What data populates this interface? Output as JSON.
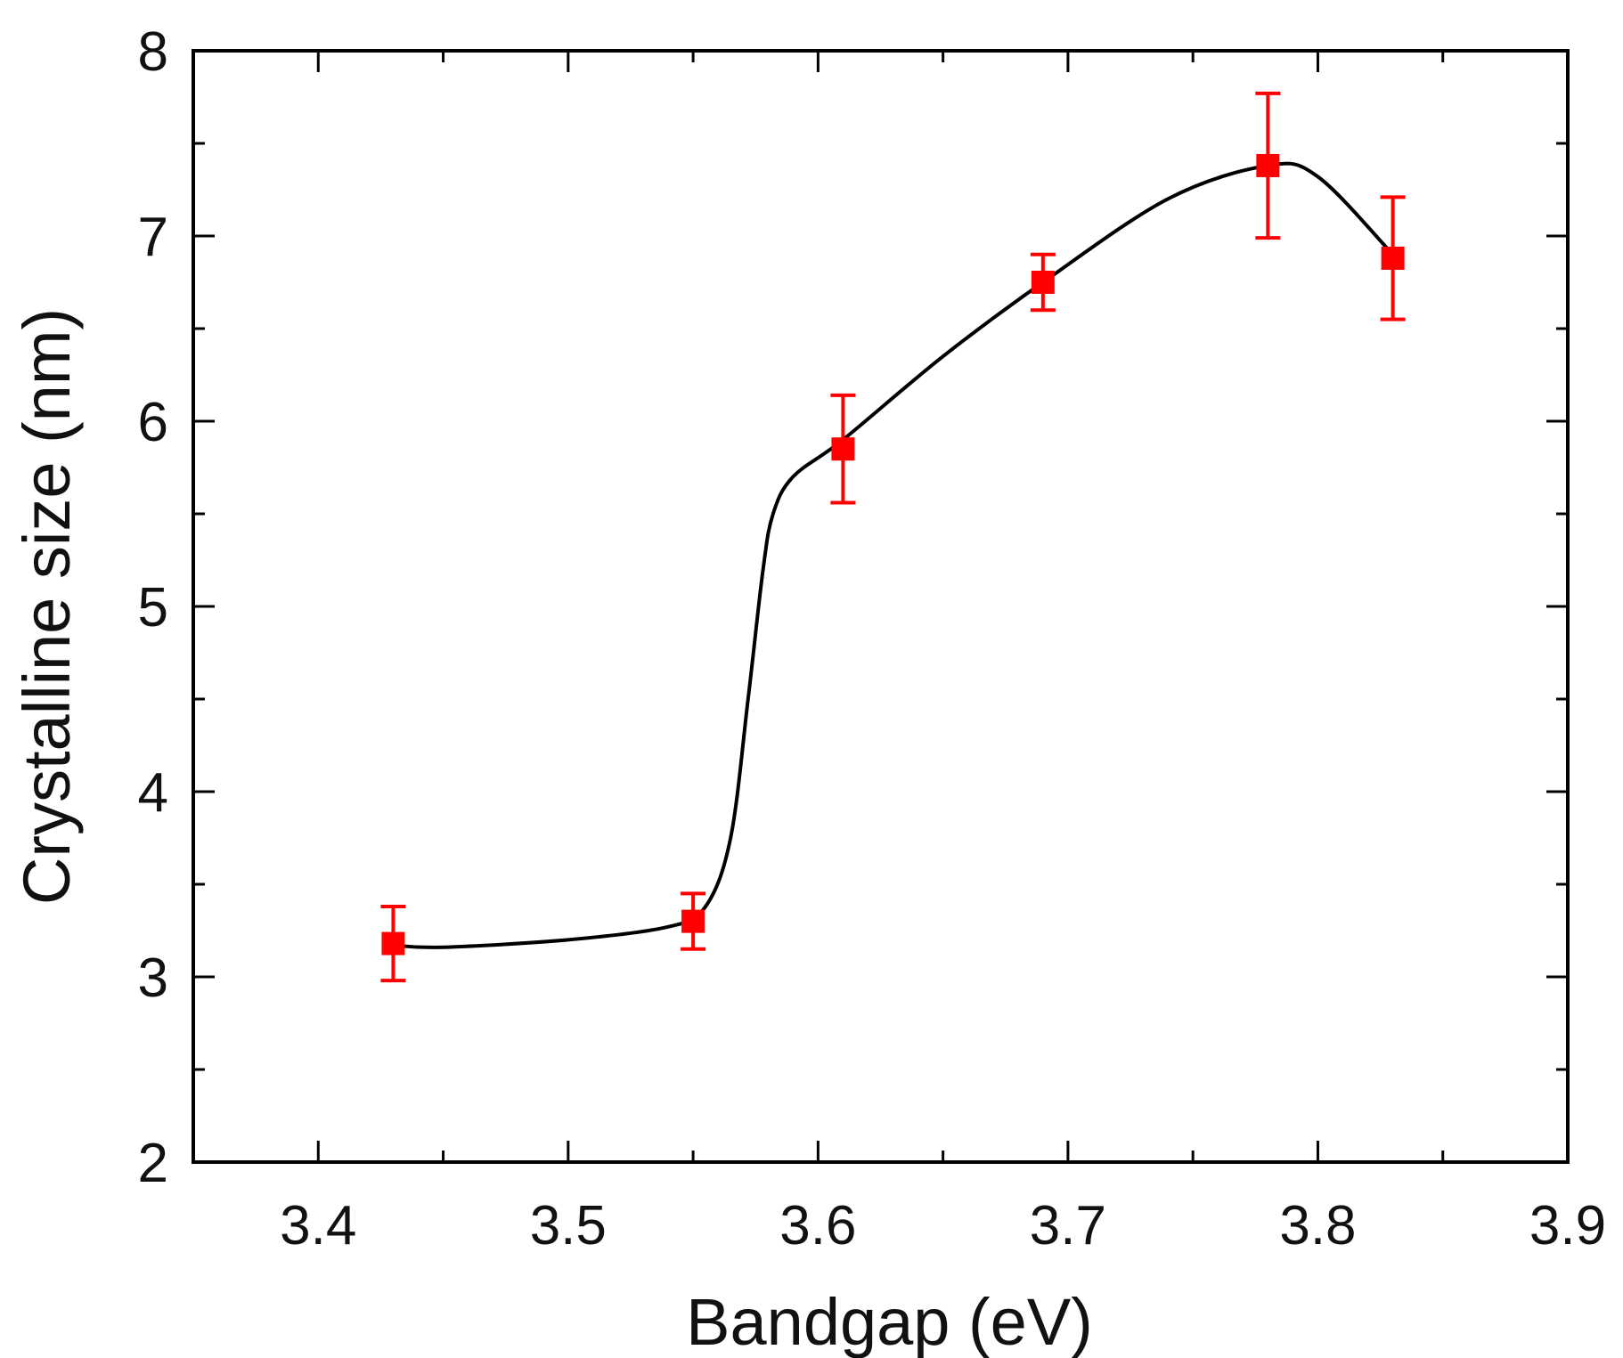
{
  "chart_data": {
    "type": "scatter",
    "title": "",
    "xlabel": "Bandgap (eV)",
    "ylabel": "Crystalline size (nm)",
    "xlim": [
      3.35,
      3.9
    ],
    "ylim": [
      2,
      8
    ],
    "grid": false,
    "x_ticks": [
      3.4,
      3.5,
      3.6,
      3.7,
      3.8,
      3.9
    ],
    "x_tick_labels": [
      "3.4",
      "3.5",
      "3.6",
      "3.7",
      "3.8",
      "3.9"
    ],
    "y_ticks": [
      2,
      3,
      4,
      5,
      6,
      7,
      8
    ],
    "y_tick_labels": [
      "2",
      "3",
      "4",
      "5",
      "6",
      "7",
      "8"
    ],
    "series": [
      {
        "name": "Crystalline size",
        "marker": "square",
        "color": "#ff0000",
        "x": [
          3.43,
          3.55,
          3.61,
          3.69,
          3.78,
          3.83
        ],
        "y": [
          3.18,
          3.3,
          5.85,
          6.75,
          7.38,
          6.88
        ],
        "error": [
          0.2,
          0.15,
          0.29,
          0.15,
          0.39,
          0.33
        ]
      }
    ],
    "fit_curve": {
      "color": "#000000",
      "x": [
        3.43,
        3.45,
        3.5,
        3.54,
        3.555,
        3.565,
        3.572,
        3.578,
        3.582,
        3.59,
        3.61,
        3.65,
        3.69,
        3.74,
        3.78,
        3.8,
        3.83
      ],
      "y": [
        3.17,
        3.16,
        3.2,
        3.27,
        3.38,
        3.75,
        4.5,
        5.2,
        5.5,
        5.7,
        5.9,
        6.35,
        6.75,
        7.2,
        7.38,
        7.32,
        6.9
      ]
    }
  }
}
